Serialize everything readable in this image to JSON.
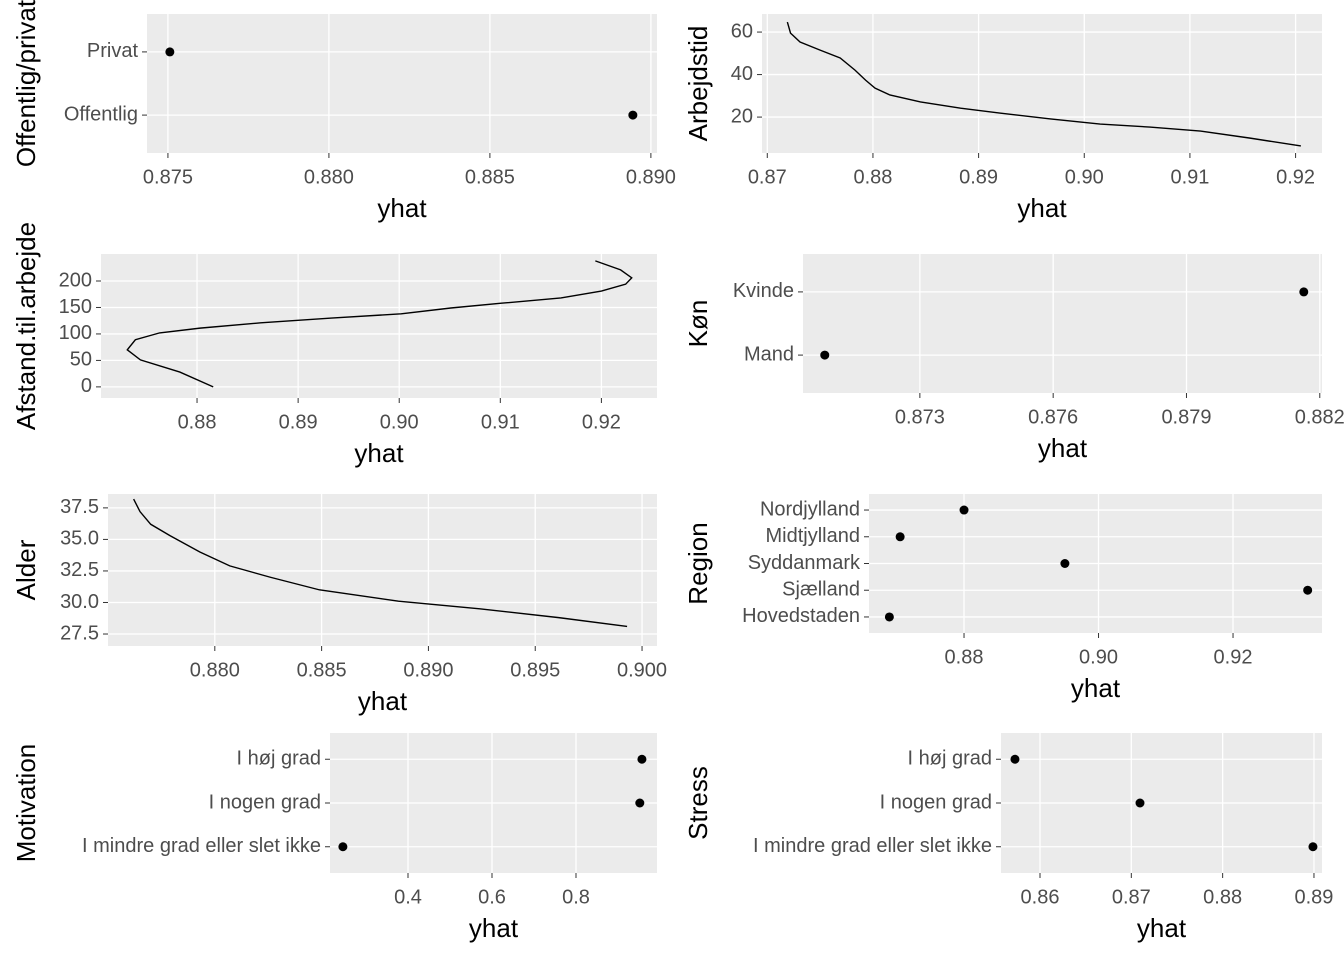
{
  "chart_data": [
    {
      "type": "dot",
      "y_label": "Offentlig/privat",
      "x_label": "yhat",
      "categories": [
        "Offentlig",
        "Privat"
      ],
      "values": [
        0.88944,
        0.87506
      ],
      "xlim": [
        0.87435,
        0.89019
      ],
      "xticks": [
        0.875,
        {
          "value": 0.88,
          "label": "0.880"
        },
        0.885,
        {
          "value": 0.89,
          "label": "0.890"
        }
      ],
      "color": "#000000",
      "grid": true
    },
    {
      "type": "line",
      "y_label": "Arbejdstid",
      "x_label": "yhat",
      "x": [
        0.8719,
        0.8722,
        0.8731,
        0.875,
        0.8769,
        0.8783,
        0.8793,
        0.8802,
        0.8816,
        0.8845,
        0.8883,
        0.892,
        0.8968,
        0.9015,
        0.9062,
        0.911,
        0.9157,
        0.9205
      ],
      "values": [
        64.7,
        59.5,
        55.3,
        51.5,
        47.8,
        42.1,
        37.4,
        33.6,
        30.4,
        27.1,
        24.2,
        21.9,
        19.1,
        16.7,
        15.3,
        13.4,
        10.1,
        6.4
      ],
      "xlim": [
        0.8695,
        0.9225
      ],
      "xticks": [
        0.87,
        0.88,
        0.89,
        {
          "value": 0.9,
          "label": "0.90"
        },
        0.91,
        0.92
      ],
      "ylim": [
        3.1,
        68.5
      ],
      "yticks": [
        20,
        40,
        60
      ],
      "color": "#000000",
      "grid": true
    },
    {
      "type": "line",
      "y_label": "Afstand.til.arbejde",
      "x_label": "yhat",
      "x": [
        0.8816,
        0.8783,
        0.8744,
        0.8731,
        0.8739,
        0.8763,
        0.8803,
        0.8863,
        0.8933,
        0.9002,
        0.9051,
        0.9101,
        0.916,
        0.92,
        0.9224,
        0.923,
        0.9219,
        0.9194
      ],
      "values": [
        0,
        28,
        51,
        70,
        89,
        102,
        111,
        121,
        130,
        138,
        149,
        158,
        168,
        181,
        194,
        206,
        221,
        238
      ],
      "xlim": [
        0.8705,
        0.9255
      ],
      "xticks": [
        0.88,
        0.89,
        {
          "value": 0.9,
          "label": "0.90"
        },
        0.91,
        0.92
      ],
      "ylim": [
        -21,
        251
      ],
      "yticks": [
        0,
        50,
        100,
        150,
        200
      ],
      "color": "#000000",
      "grid": true
    },
    {
      "type": "dot",
      "y_label": "Køn",
      "x_label": "yhat",
      "categories": [
        "Mand",
        "Kvinde"
      ],
      "values": [
        0.87086,
        0.88164
      ],
      "xlim": [
        0.87037,
        0.88205
      ],
      "xticks": [
        0.873,
        0.876,
        0.879,
        0.882
      ],
      "color": "#000000",
      "grid": true
    },
    {
      "type": "line",
      "y_label": "Alder",
      "x_label": "yhat",
      "x": [
        0.8762,
        0.8765,
        0.877,
        0.8779,
        0.8793,
        0.8807,
        0.8826,
        0.8849,
        0.8886,
        0.8924,
        0.8961,
        0.8993
      ],
      "values": [
        38.2,
        37.2,
        36.2,
        35.3,
        34.0,
        32.9,
        32.0,
        31.0,
        30.1,
        29.5,
        28.8,
        28.1
      ],
      "xlim": [
        0.875,
        0.9007
      ],
      "xticks": [
        {
          "value": 0.88,
          "label": "0.880"
        },
        0.885,
        {
          "value": 0.89,
          "label": "0.890"
        },
        0.895,
        {
          "value": 0.9,
          "label": "0.900"
        }
      ],
      "ylim": [
        26.55,
        38.6
      ],
      "yticks": [
        27.5,
        {
          "value": 30,
          "label": "30.0"
        },
        32.5,
        {
          "value": 35,
          "label": "35.0"
        },
        37.5
      ],
      "color": "#000000",
      "grid": true
    },
    {
      "type": "dot",
      "y_label": "Region",
      "x_label": "yhat",
      "categories": [
        "Hovedstaden",
        "Sjælland",
        "Syddanmark",
        "Midtjylland",
        "Nordjylland"
      ],
      "values": [
        0.8689,
        0.9311,
        0.895,
        0.8705,
        0.88
      ],
      "xlim": [
        0.86587,
        0.93323
      ],
      "xticks": [
        0.88,
        {
          "value": 0.9,
          "label": "0.90"
        },
        0.92
      ],
      "color": "#000000",
      "grid": true
    },
    {
      "type": "dot",
      "y_label": "Motivation",
      "x_label": "yhat",
      "categories": [
        "I mindre grad eller slet ikke",
        "I nogen grad",
        "I høj grad"
      ],
      "values": [
        0.245,
        0.952,
        0.957
      ],
      "xlim": [
        0.2143,
        0.9929
      ],
      "xticks": [
        0.4,
        0.6,
        0.8
      ],
      "color": "#000000",
      "grid": true
    },
    {
      "type": "dot",
      "y_label": "Stress",
      "x_label": "yhat",
      "categories": [
        "I mindre grad eller slet ikke",
        "I nogen grad",
        "I høj grad"
      ],
      "values": [
        0.88989,
        0.87095,
        0.85726
      ],
      "xlim": [
        0.85573,
        0.89088
      ],
      "xticks": [
        0.86,
        0.87,
        0.88,
        0.89
      ],
      "color": "#000000",
      "grid": true
    }
  ]
}
